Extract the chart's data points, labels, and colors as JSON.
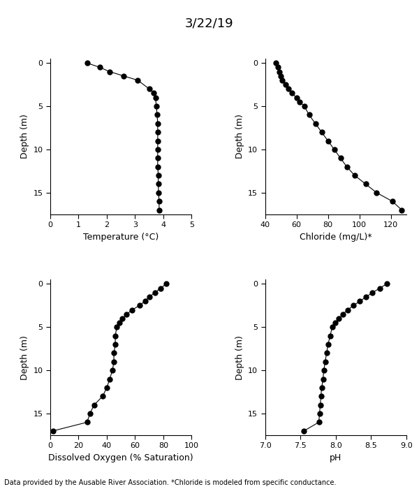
{
  "title": "3/22/19",
  "footnote": "Data provided by the Ausable River Association. *Chloride is modeled from specific conductance.",
  "temp": {
    "depth": [
      0,
      0.5,
      1,
      1.5,
      2,
      3,
      3.5,
      4,
      5,
      6,
      7,
      8,
      9,
      10,
      11,
      12,
      13,
      14,
      15,
      16,
      17
    ],
    "values": [
      1.3,
      1.75,
      2.1,
      2.6,
      3.1,
      3.5,
      3.65,
      3.72,
      3.75,
      3.78,
      3.8,
      3.8,
      3.8,
      3.8,
      3.8,
      3.8,
      3.82,
      3.82,
      3.83,
      3.85,
      3.85
    ],
    "xlabel": "Temperature (°C)",
    "xlim": [
      0,
      5
    ],
    "xticks": [
      0,
      1,
      2,
      3,
      4,
      5
    ]
  },
  "chloride": {
    "depth": [
      0,
      0.5,
      1,
      1.5,
      2,
      2.5,
      3,
      3.5,
      4,
      4.5,
      5,
      6,
      7,
      8,
      9,
      10,
      11,
      12,
      13,
      14,
      15,
      16,
      17
    ],
    "values": [
      47,
      48,
      49,
      50,
      51,
      53,
      55,
      57,
      60,
      62,
      65,
      68,
      72,
      76,
      80,
      84,
      88,
      92,
      97,
      104,
      111,
      121,
      127
    ],
    "xlabel": "Chloride (mg/L)*",
    "xlim": [
      40,
      130
    ],
    "xticks": [
      40,
      60,
      80,
      100,
      120
    ]
  },
  "do": {
    "depth": [
      0,
      0.5,
      1,
      1.5,
      2,
      2.5,
      3,
      3.5,
      4,
      4.5,
      5,
      6,
      7,
      8,
      9,
      10,
      11,
      12,
      13,
      14,
      15,
      16,
      17
    ],
    "values": [
      82,
      78,
      74,
      70,
      67,
      63,
      58,
      54,
      51,
      49,
      47,
      46,
      46,
      45,
      45,
      44,
      42,
      40,
      37,
      31,
      28,
      26,
      2
    ],
    "xlabel": "Dissolved Oxygen (% Saturation)",
    "xlim": [
      0,
      100
    ],
    "xticks": [
      0,
      20,
      40,
      60,
      80,
      100
    ]
  },
  "ph": {
    "depth": [
      0,
      0.5,
      1,
      1.5,
      2,
      2.5,
      3,
      3.5,
      4,
      4.5,
      5,
      6,
      7,
      8,
      9,
      10,
      11,
      12,
      13,
      14,
      15,
      16,
      17
    ],
    "values": [
      8.72,
      8.62,
      8.52,
      8.43,
      8.34,
      8.25,
      8.17,
      8.1,
      8.04,
      7.99,
      7.95,
      7.92,
      7.89,
      7.87,
      7.85,
      7.83,
      7.82,
      7.8,
      7.79,
      7.78,
      7.77,
      7.76,
      7.55
    ],
    "xlabel": "pH",
    "xlim": [
      7.0,
      9.0
    ],
    "xticks": [
      7.0,
      7.5,
      8.0,
      8.5,
      9.0
    ]
  },
  "ylabel": "Depth (m)",
  "ylim": [
    17.5,
    -0.5
  ],
  "yticks": [
    0,
    5,
    10,
    15
  ],
  "marker": "o",
  "markersize": 5,
  "color": "black",
  "linewidth": 0.8,
  "title_fontsize": 13,
  "label_fontsize": 9,
  "tick_fontsize": 8,
  "footnote_fontsize": 7
}
